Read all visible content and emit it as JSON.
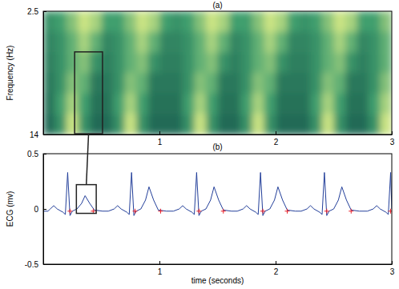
{
  "chart_data": [
    {
      "type": "heatmap",
      "title": "(a)",
      "y_label": "Frequency (Hz)",
      "xlim": [
        0,
        3
      ],
      "xticks": [
        1,
        2,
        3
      ],
      "ylim": [
        2.5,
        14
      ],
      "yticks": [
        2.5,
        14
      ],
      "zlim": [
        0,
        1
      ],
      "x_edges": [
        0,
        0.1,
        0.2,
        0.3,
        0.4,
        0.5,
        0.6,
        0.7,
        0.8,
        0.9,
        1,
        1.1,
        1.2,
        1.3,
        1.4,
        1.5,
        1.6,
        1.7,
        1.8,
        1.9,
        2,
        2.1,
        2.2,
        2.3,
        2.4,
        2.5,
        2.6,
        2.7,
        2.8,
        2.9,
        3
      ],
      "y_edges": [
        2.5,
        4.42,
        6.33,
        8.25,
        10.17,
        12.08,
        14
      ],
      "cells": [
        [
          0.4,
          0.5,
          0.7,
          0.9,
          0.8,
          0.5,
          0.5,
          0.7,
          0.9,
          0.8,
          0.5,
          0.4,
          0.5,
          0.7,
          0.9,
          0.8,
          0.5,
          0.5,
          0.7,
          0.9,
          0.8,
          0.5,
          0.4,
          0.5,
          0.7,
          0.9,
          0.8,
          0.5,
          0.5,
          0.7
        ],
        [
          0.3,
          0.4,
          0.6,
          0.8,
          0.6,
          0.3,
          0.4,
          0.6,
          0.8,
          0.6,
          0.3,
          0.3,
          0.4,
          0.6,
          0.8,
          0.6,
          0.3,
          0.4,
          0.6,
          0.8,
          0.6,
          0.3,
          0.3,
          0.4,
          0.6,
          0.8,
          0.6,
          0.3,
          0.4,
          0.6
        ],
        [
          0.25,
          0.4,
          0.6,
          0.7,
          0.4,
          0.25,
          0.4,
          0.6,
          0.7,
          0.4,
          0.25,
          0.25,
          0.4,
          0.6,
          0.7,
          0.4,
          0.25,
          0.4,
          0.6,
          0.7,
          0.4,
          0.25,
          0.25,
          0.4,
          0.6,
          0.7,
          0.4,
          0.25,
          0.4,
          0.6
        ],
        [
          0.2,
          0.4,
          0.7,
          0.6,
          0.2,
          0.2,
          0.4,
          0.7,
          0.6,
          0.2,
          0.2,
          0.2,
          0.4,
          0.7,
          0.6,
          0.2,
          0.2,
          0.4,
          0.7,
          0.6,
          0.2,
          0.2,
          0.2,
          0.4,
          0.7,
          0.6,
          0.2,
          0.2,
          0.4,
          0.7
        ],
        [
          0.15,
          0.5,
          0.8,
          0.5,
          0.15,
          0.15,
          0.5,
          0.8,
          0.5,
          0.15,
          0.15,
          0.15,
          0.5,
          0.8,
          0.5,
          0.15,
          0.15,
          0.5,
          0.8,
          0.5,
          0.15,
          0.15,
          0.15,
          0.5,
          0.8,
          0.5,
          0.15,
          0.15,
          0.5,
          0.8
        ],
        [
          0.1,
          0.4,
          0.9,
          0.4,
          0.1,
          0.1,
          0.4,
          0.9,
          0.4,
          0.1,
          0.1,
          0.1,
          0.4,
          0.9,
          0.4,
          0.1,
          0.1,
          0.4,
          0.9,
          0.4,
          0.1,
          0.1,
          0.1,
          0.4,
          0.9,
          0.4,
          0.1,
          0.1,
          0.4,
          0.9
        ]
      ]
    },
    {
      "type": "line",
      "title": "(b)",
      "x_label": "time (seconds)",
      "y_label": "ECG (mv)",
      "xlim": [
        0,
        3
      ],
      "xticks": [
        1,
        2,
        3
      ],
      "ylim": [
        -0.5,
        0.5
      ],
      "yticks": [
        -0.5,
        0,
        0.5
      ],
      "series": [
        {
          "type": "line",
          "color": "#233f9a",
          "x": [
            0,
            0.04,
            0.06,
            0.09,
            0.12,
            0.17,
            0.19,
            0.21,
            0.23,
            0.25,
            0.29,
            0.33,
            0.36,
            0.4,
            0.44,
            0.51,
            0.56,
            0.61,
            0.64,
            0.67,
            0.72,
            0.74,
            0.76,
            0.78,
            0.8,
            0.84,
            0.88,
            0.91,
            0.95,
            0.99,
            1.06,
            1.12,
            1.17,
            1.2,
            1.23,
            1.28,
            1.3,
            1.32,
            1.34,
            1.36,
            1.4,
            1.44,
            1.47,
            1.51,
            1.55,
            1.62,
            1.67,
            1.72,
            1.75,
            1.78,
            1.83,
            1.85,
            1.87,
            1.89,
            1.91,
            1.95,
            1.99,
            2.02,
            2.06,
            2.1,
            2.17,
            2.22,
            2.27,
            2.3,
            2.33,
            2.38,
            2.4,
            2.42,
            2.44,
            2.46,
            2.5,
            2.54,
            2.57,
            2.61,
            2.65,
            2.72,
            2.79,
            2.84,
            2.87,
            2.9,
            2.95,
            2.97,
            2.99,
            3.0
          ],
          "values": [
            -0.02,
            -0.02,
            0,
            0.03,
            0,
            -0.03,
            -0.05,
            0.33,
            -0.06,
            -0.02,
            0,
            0.05,
            0.12,
            0.05,
            -0.01,
            -0.02,
            -0.02,
            0,
            0.03,
            0,
            -0.03,
            -0.05,
            0.33,
            -0.06,
            -0.02,
            0,
            0.08,
            0.2,
            0.08,
            -0.01,
            -0.02,
            -0.02,
            0,
            0.03,
            0,
            -0.03,
            -0.05,
            0.33,
            -0.06,
            -0.02,
            0,
            0.08,
            0.2,
            0.08,
            -0.01,
            -0.02,
            -0.02,
            0,
            0.03,
            0,
            -0.03,
            -0.05,
            0.33,
            -0.06,
            -0.02,
            0,
            0.08,
            0.2,
            0.08,
            -0.01,
            -0.02,
            -0.02,
            0,
            0.03,
            0,
            -0.03,
            -0.05,
            0.33,
            -0.06,
            -0.02,
            0,
            0.08,
            0.2,
            0.08,
            -0.01,
            -0.02,
            -0.02,
            0,
            0.03,
            0,
            -0.03,
            -0.05,
            0.33,
            0
          ]
        },
        {
          "type": "scatter",
          "color": "#e8202a",
          "marker": "plus",
          "x": [
            0.23,
            0.43,
            0.79,
            1.01,
            1.34,
            1.55,
            1.89,
            2.1,
            2.44,
            2.65,
            2.99
          ],
          "values": [
            -0.02,
            -0.02,
            -0.02,
            -0.02,
            -0.02,
            -0.02,
            -0.02,
            -0.02,
            -0.02,
            -0.02,
            -0.02
          ]
        }
      ]
    }
  ]
}
